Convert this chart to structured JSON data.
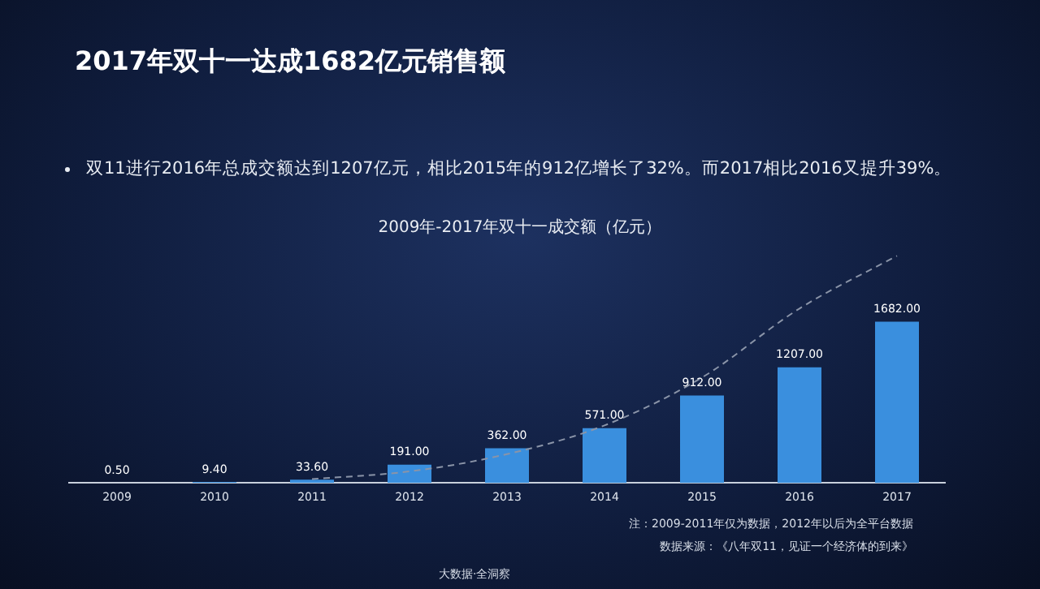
{
  "chart_data": {
    "type": "bar",
    "title": "2017年双十一达成1682亿元销售额",
    "subtitle": "2009年-2017年双十一成交额（亿元）",
    "categories": [
      "2009",
      "2010",
      "2011",
      "2012",
      "2013",
      "2014",
      "2015",
      "2016",
      "2017"
    ],
    "series": [
      {
        "color": "#3a8fde",
        "values": [
          0.5,
          9.4,
          33.6,
          191,
          362,
          571,
          912,
          1207,
          1682
        ],
        "value_labels": [
          "0.50",
          "9.40",
          "33.60",
          "191.00",
          "362.00",
          "571.00",
          "912.00",
          "1207.00",
          "1682.00"
        ]
      },
      {
        "type": "line",
        "color": "#8a94a8",
        "line_style": "dashed",
        "marker": "none",
        "values": [
          null,
          null,
          40,
          120,
          300,
          600,
          1100,
          1820,
          2370
        ]
      }
    ],
    "grid": false,
    "legend": false,
    "annotations": [
      "双11进行2016年总成交额达到1207亿元，相比2015年的912亿增长了32%。而2017相比2016又提升39%。",
      "注：2009-2011年仅为数据，2012年以后为全平台数据",
      "数据来源：《八年双11，见证一个经济体的到来》",
      "大数据·全洞察"
    ]
  }
}
